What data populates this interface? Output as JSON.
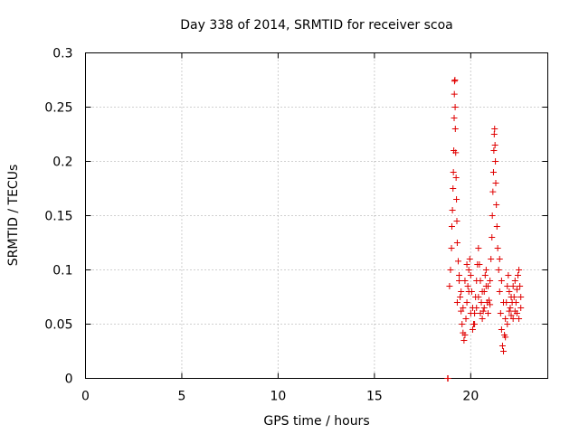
{
  "chart_data": {
    "type": "scatter",
    "title": "Day 338 of 2014, SRMTID for receiver scoa",
    "xlabel": "GPS time / hours",
    "ylabel": "SRMTID / TECUs",
    "xlim": [
      0,
      24
    ],
    "ylim": [
      0,
      0.3
    ],
    "xticks": [
      0,
      5,
      10,
      15,
      20
    ],
    "xtick_labels": [
      "0",
      "5",
      "10",
      "15",
      "20"
    ],
    "yticks": [
      0,
      0.05,
      0.1,
      0.15,
      0.2,
      0.25,
      0.3
    ],
    "ytick_labels": [
      "0",
      "0.05",
      "0.1",
      "0.15",
      "0.2",
      "0.25",
      "0.3"
    ],
    "grid": true,
    "marker": "+",
    "color": "#e00000",
    "series": [
      {
        "name": "scoa",
        "points": [
          [
            18.8,
            0.0
          ],
          [
            18.82,
            0.0
          ],
          [
            18.9,
            0.085
          ],
          [
            18.95,
            0.1
          ],
          [
            19.0,
            0.12
          ],
          [
            19.02,
            0.14
          ],
          [
            19.05,
            0.155
          ],
          [
            19.08,
            0.175
          ],
          [
            19.1,
            0.19
          ],
          [
            19.12,
            0.21
          ],
          [
            19.14,
            0.24
          ],
          [
            19.15,
            0.262
          ],
          [
            19.16,
            0.274
          ],
          [
            19.18,
            0.275
          ],
          [
            19.19,
            0.25
          ],
          [
            19.2,
            0.23
          ],
          [
            19.22,
            0.208
          ],
          [
            19.24,
            0.185
          ],
          [
            19.26,
            0.165
          ],
          [
            19.28,
            0.145
          ],
          [
            19.3,
            0.125
          ],
          [
            19.35,
            0.108
          ],
          [
            19.4,
            0.09
          ],
          [
            19.45,
            0.075
          ],
          [
            19.5,
            0.062
          ],
          [
            19.55,
            0.05
          ],
          [
            19.6,
            0.042
          ],
          [
            19.65,
            0.035
          ],
          [
            19.7,
            0.04
          ],
          [
            19.75,
            0.055
          ],
          [
            19.8,
            0.07
          ],
          [
            19.85,
            0.085
          ],
          [
            19.9,
            0.1
          ],
          [
            19.95,
            0.11
          ],
          [
            20.0,
            0.095
          ],
          [
            20.05,
            0.08
          ],
          [
            20.1,
            0.065
          ],
          [
            20.15,
            0.05
          ],
          [
            20.2,
            0.06
          ],
          [
            20.25,
            0.075
          ],
          [
            20.3,
            0.09
          ],
          [
            20.35,
            0.105
          ],
          [
            20.4,
            0.12
          ],
          [
            20.45,
            0.105
          ],
          [
            20.5,
            0.09
          ],
          [
            20.55,
            0.07
          ],
          [
            20.6,
            0.055
          ],
          [
            20.65,
            0.062
          ],
          [
            20.7,
            0.08
          ],
          [
            20.75,
            0.095
          ],
          [
            20.8,
            0.085
          ],
          [
            20.85,
            0.07
          ],
          [
            20.9,
            0.06
          ],
          [
            20.95,
            0.072
          ],
          [
            21.0,
            0.09
          ],
          [
            21.05,
            0.11
          ],
          [
            21.1,
            0.13
          ],
          [
            21.12,
            0.15
          ],
          [
            21.15,
            0.172
          ],
          [
            21.18,
            0.19
          ],
          [
            21.2,
            0.21
          ],
          [
            21.22,
            0.225
          ],
          [
            21.24,
            0.23
          ],
          [
            21.26,
            0.215
          ],
          [
            21.28,
            0.2
          ],
          [
            21.3,
            0.18
          ],
          [
            21.33,
            0.16
          ],
          [
            21.36,
            0.14
          ],
          [
            21.4,
            0.12
          ],
          [
            21.45,
            0.1
          ],
          [
            21.5,
            0.08
          ],
          [
            21.55,
            0.06
          ],
          [
            21.6,
            0.045
          ],
          [
            21.65,
            0.03
          ],
          [
            21.7,
            0.025
          ],
          [
            21.75,
            0.04
          ],
          [
            21.8,
            0.055
          ],
          [
            21.85,
            0.07
          ],
          [
            21.9,
            0.085
          ],
          [
            21.95,
            0.095
          ],
          [
            22.0,
            0.08
          ],
          [
            22.05,
            0.065
          ],
          [
            22.1,
            0.058
          ],
          [
            22.15,
            0.07
          ],
          [
            22.2,
            0.085
          ],
          [
            22.25,
            0.075
          ],
          [
            22.3,
            0.062
          ],
          [
            22.35,
            0.07
          ],
          [
            22.4,
            0.082
          ],
          [
            22.45,
            0.095
          ],
          [
            22.5,
            0.1
          ],
          [
            22.55,
            0.085
          ],
          [
            22.6,
            0.075
          ],
          [
            19.3,
            0.07
          ],
          [
            19.4,
            0.095
          ],
          [
            19.5,
            0.08
          ],
          [
            19.6,
            0.065
          ],
          [
            19.7,
            0.09
          ],
          [
            19.8,
            0.105
          ],
          [
            19.9,
            0.08
          ],
          [
            20.0,
            0.06
          ],
          [
            20.1,
            0.045
          ],
          [
            20.2,
            0.05
          ],
          [
            20.3,
            0.065
          ],
          [
            20.4,
            0.075
          ],
          [
            20.5,
            0.06
          ],
          [
            20.6,
            0.08
          ],
          [
            20.7,
            0.065
          ],
          [
            20.8,
            0.1
          ],
          [
            20.9,
            0.085
          ],
          [
            21.0,
            0.068
          ],
          [
            21.5,
            0.11
          ],
          [
            21.6,
            0.09
          ],
          [
            21.7,
            0.07
          ],
          [
            21.8,
            0.038
          ],
          [
            21.9,
            0.05
          ],
          [
            22.0,
            0.062
          ],
          [
            22.1,
            0.075
          ],
          [
            22.2,
            0.055
          ],
          [
            22.3,
            0.09
          ],
          [
            22.4,
            0.06
          ],
          [
            22.5,
            0.055
          ],
          [
            22.6,
            0.065
          ]
        ]
      }
    ]
  }
}
